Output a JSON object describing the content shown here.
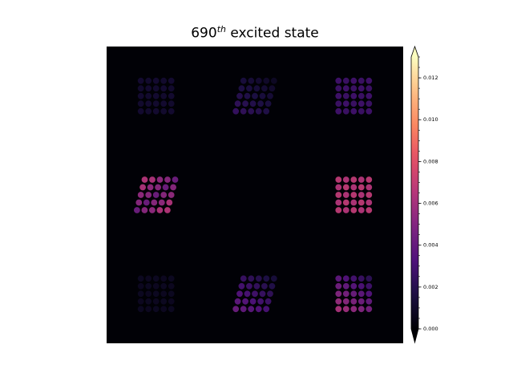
{
  "chart_data": {
    "type": "heatmap",
    "title": {
      "number": "690",
      "superscript": "th",
      "rest": " excited state"
    },
    "colormap": "magma",
    "colorbar": {
      "vmin": 0.0,
      "vmax": 0.013,
      "extend": "both",
      "ticks": [
        "0.000",
        "0.002",
        "0.004",
        "0.006",
        "0.008",
        "0.010",
        "0.012"
      ],
      "tick_values": [
        0.0,
        0.002,
        0.004,
        0.006,
        0.008,
        0.01,
        0.012
      ]
    },
    "panels": [
      {
        "row": 0,
        "col": 0,
        "peak": 0.0012,
        "shape": "square",
        "gradient": "uniform"
      },
      {
        "row": 0,
        "col": 1,
        "peak": 0.0025,
        "shape": "skewed",
        "gradient": "bottom-left"
      },
      {
        "row": 0,
        "col": 2,
        "peak": 0.0028,
        "shape": "square",
        "gradient": "uniform"
      },
      {
        "row": 1,
        "col": 0,
        "peak": 0.007,
        "shape": "skewed",
        "gradient": "corners"
      },
      {
        "row": 1,
        "col": 1,
        "peak": 0.0,
        "shape": "none",
        "gradient": "uniform"
      },
      {
        "row": 1,
        "col": 2,
        "peak": 0.0068,
        "shape": "square",
        "gradient": "uniform"
      },
      {
        "row": 2,
        "col": 0,
        "peak": 0.0008,
        "shape": "square",
        "gradient": "uniform"
      },
      {
        "row": 2,
        "col": 1,
        "peak": 0.0042,
        "shape": "skewed",
        "gradient": "bottom-left"
      },
      {
        "row": 2,
        "col": 2,
        "peak": 0.0062,
        "shape": "square",
        "gradient": "bottom-left"
      }
    ],
    "grid": false,
    "axes_visible": false
  }
}
